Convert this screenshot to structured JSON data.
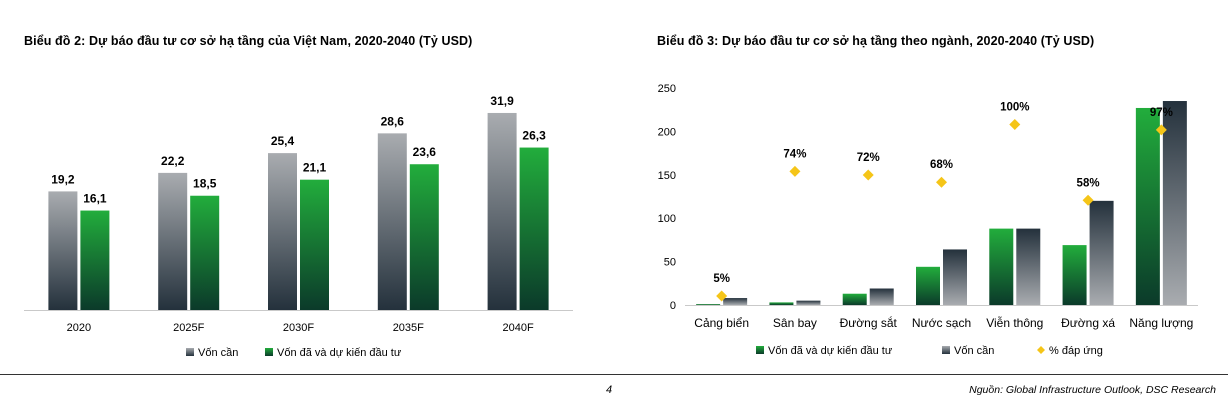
{
  "colors": {
    "dark_bar_top": "#a9acb0",
    "dark_bar_bottom": "#24313c",
    "green_bar_top": "#22ad3c",
    "green_bar_bottom": "#0b3a2a",
    "diamond": "#f5c518",
    "axis": "#c9c9c9"
  },
  "chart_data": [
    {
      "type": "bar",
      "title": "Biểu đồ 2: Dự báo đầu tư cơ sở hạ tầng của Việt Nam, 2020-2040 (Tỷ USD)",
      "categories": [
        "2020",
        "2025F",
        "2030F",
        "2035F",
        "2040F"
      ],
      "series": [
        {
          "name": "Vốn cần",
          "values": [
            19.2,
            22.2,
            25.4,
            28.6,
            31.9
          ],
          "labels": [
            "19,2",
            "22,2",
            "25,4",
            "28,6",
            "31,9"
          ]
        },
        {
          "name": "Vốn đã và dự kiến đầu tư",
          "values": [
            16.1,
            18.5,
            21.1,
            23.6,
            26.3
          ],
          "labels": [
            "16,1",
            "18,5",
            "21,1",
            "23,6",
            "26,3"
          ]
        }
      ],
      "ylim": [
        0,
        34
      ],
      "grid": false,
      "legend": "bottom"
    },
    {
      "type": "bar",
      "title": "Biểu đồ 3: Dự báo đầu tư cơ sở hạ tầng theo ngành, 2020-2040 (Tỷ USD)",
      "categories": [
        "Cảng biển",
        "Sân bay",
        "Đường sắt",
        "Nước sạch",
        "Viễn thông",
        "Đường xá",
        "Năng lượng"
      ],
      "series": [
        {
          "name": "Vốn đã và dự kiến đầu tư",
          "values": [
            1,
            3,
            13,
            44,
            88,
            69,
            227
          ]
        },
        {
          "name": "Vốn cần",
          "values": [
            8,
            5,
            19,
            64,
            88,
            120,
            235
          ]
        },
        {
          "name": "% đáp ứng",
          "values": [
            5,
            74,
            72,
            68,
            100,
            58,
            97
          ],
          "labels": [
            "5%",
            "74%",
            "72%",
            "68%",
            "100%",
            "58%",
            "97%"
          ]
        }
      ],
      "yticks": [
        "0",
        "50",
        "100",
        "150",
        "200",
        "250"
      ],
      "ylim": [
        0,
        250
      ],
      "grid": false,
      "legend": "bottom"
    }
  ],
  "page_number": "4",
  "source": "Nguồn: Global Infrastructure Outlook, DSC Research"
}
